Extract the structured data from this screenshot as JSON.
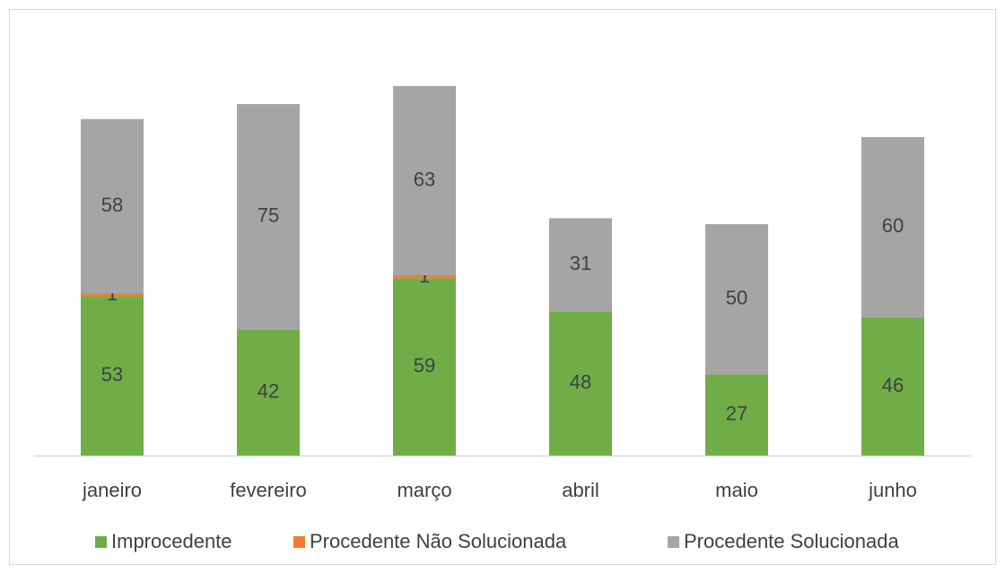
{
  "chart_data": {
    "type": "stacked_bar",
    "categories": [
      "janeiro",
      "fevereiro",
      "março",
      "abril",
      "maio",
      "junho"
    ],
    "series": [
      {
        "name": "Improcedente",
        "color": "#70ad47",
        "values": [
          53,
          42,
          59,
          48,
          27,
          46
        ]
      },
      {
        "name": "Procedente Não Solucionada",
        "color": "#ed7d31",
        "values": [
          1,
          null,
          1,
          null,
          null,
          null
        ]
      },
      {
        "name": "Procedente Solucionada",
        "color": "#a5a5a5",
        "values": [
          58,
          75,
          63,
          31,
          50,
          60
        ]
      }
    ],
    "legend": "bottom"
  }
}
